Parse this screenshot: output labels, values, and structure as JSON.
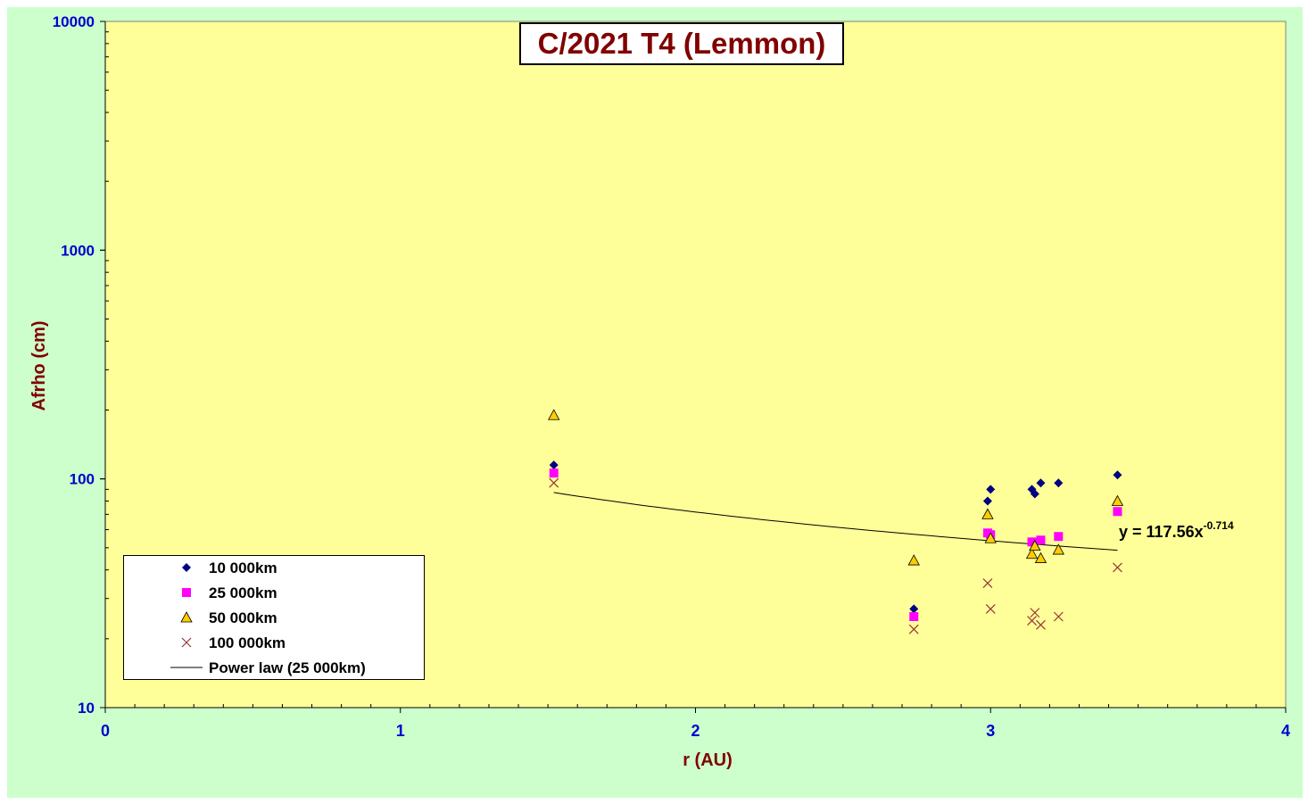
{
  "chart_data": {
    "type": "scatter",
    "title": "C/2021 T4 (Lemmon)",
    "xlabel": "r (AU)",
    "ylabel": "Afrho (cm)",
    "xlim": [
      0,
      4
    ],
    "ylim": [
      10,
      10000
    ],
    "yscale": "log",
    "x_ticks": [
      "0",
      "1",
      "2",
      "3",
      "4"
    ],
    "y_ticks": [
      "10",
      "100",
      "1000",
      "10000"
    ],
    "grid": false,
    "legend_position": "bottom-left",
    "series": [
      {
        "name": "10 000km",
        "marker": "diamond",
        "color": "#000080",
        "points": [
          [
            1.52,
            115
          ],
          [
            2.74,
            27
          ],
          [
            2.99,
            80
          ],
          [
            3.0,
            90
          ],
          [
            3.14,
            90
          ],
          [
            3.15,
            86
          ],
          [
            3.17,
            96
          ],
          [
            3.23,
            96
          ],
          [
            3.43,
            104
          ]
        ]
      },
      {
        "name": "25 000km",
        "marker": "square",
        "color": "#ff00ff",
        "points": [
          [
            1.52,
            106
          ],
          [
            2.74,
            25
          ],
          [
            2.99,
            58
          ],
          [
            3.0,
            57
          ],
          [
            3.14,
            53
          ],
          [
            3.17,
            54
          ],
          [
            3.23,
            56
          ],
          [
            3.43,
            72
          ]
        ]
      },
      {
        "name": "50 000km",
        "marker": "triangle",
        "color": "#ffcc00",
        "points": [
          [
            1.52,
            190
          ],
          [
            2.74,
            44
          ],
          [
            2.99,
            70
          ],
          [
            3.0,
            55
          ],
          [
            3.14,
            47
          ],
          [
            3.15,
            51
          ],
          [
            3.17,
            45
          ],
          [
            3.23,
            49
          ],
          [
            3.43,
            80
          ]
        ]
      },
      {
        "name": "100 000km",
        "marker": "x",
        "color": "#993333",
        "points": [
          [
            1.52,
            96
          ],
          [
            2.74,
            22
          ],
          [
            2.99,
            35
          ],
          [
            3.0,
            27
          ],
          [
            3.14,
            24
          ],
          [
            3.15,
            26
          ],
          [
            3.17,
            23
          ],
          [
            3.23,
            25
          ],
          [
            3.43,
            41
          ]
        ]
      }
    ],
    "trendline": {
      "name": "Power law (25 000km)",
      "type": "power",
      "coefficient": 117.56,
      "exponent": -0.714,
      "x_range": [
        1.52,
        3.43
      ],
      "color": "#000000",
      "equation_text": "y = 117.56x",
      "equation_exponent": "-0.714"
    }
  },
  "colors": {
    "outer_background": "#ccffcc",
    "plot_background": "#ffff99",
    "title_color": "#800000",
    "axis_label_color": "#800000",
    "tick_label_color": "#0000cc"
  }
}
